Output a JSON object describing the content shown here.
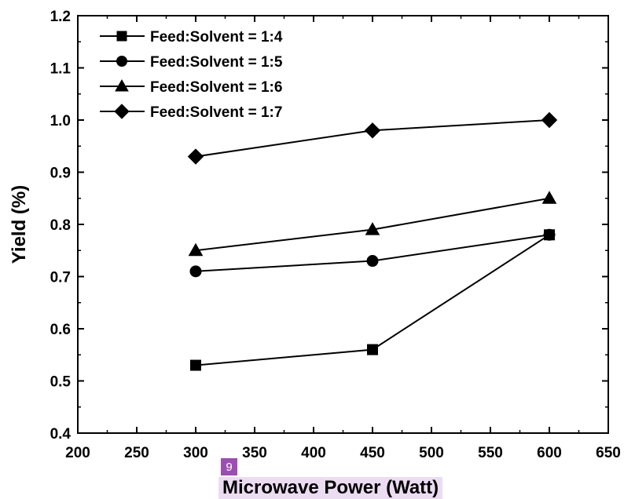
{
  "badge": "9",
  "chart_data": {
    "type": "line",
    "title": "",
    "xlabel": "Microwave Power (Watt)",
    "ylabel": "Yield (%)",
    "xlim": [
      200,
      650
    ],
    "ylim": [
      0.4,
      1.2
    ],
    "xticks": [
      200,
      250,
      300,
      350,
      400,
      450,
      500,
      550,
      600,
      650
    ],
    "yticks": [
      0.4,
      0.5,
      0.6,
      0.7,
      0.8,
      0.9,
      1.0,
      1.1,
      1.2
    ],
    "ytick_labels": [
      "0.4",
      "0.5",
      "0.6",
      "0.7",
      "0.8",
      "0.9",
      "1.0",
      "1.1",
      "1.2"
    ],
    "grid": false,
    "legend_position": "top-left",
    "x": [
      300,
      450,
      600
    ],
    "series": [
      {
        "name": "Feed:Solvent = 1:4",
        "marker": "square",
        "color": "#000000",
        "values": [
          0.53,
          0.56,
          0.78
        ]
      },
      {
        "name": "Feed:Solvent = 1:5",
        "marker": "circle",
        "color": "#000000",
        "values": [
          0.71,
          0.73,
          0.78
        ]
      },
      {
        "name": "Feed:Solvent = 1:6",
        "marker": "triangle",
        "color": "#000000",
        "values": [
          0.75,
          0.79,
          0.85
        ]
      },
      {
        "name": "Feed:Solvent = 1:7",
        "marker": "diamond",
        "color": "#000000",
        "values": [
          0.93,
          0.98,
          1.0
        ]
      }
    ]
  }
}
